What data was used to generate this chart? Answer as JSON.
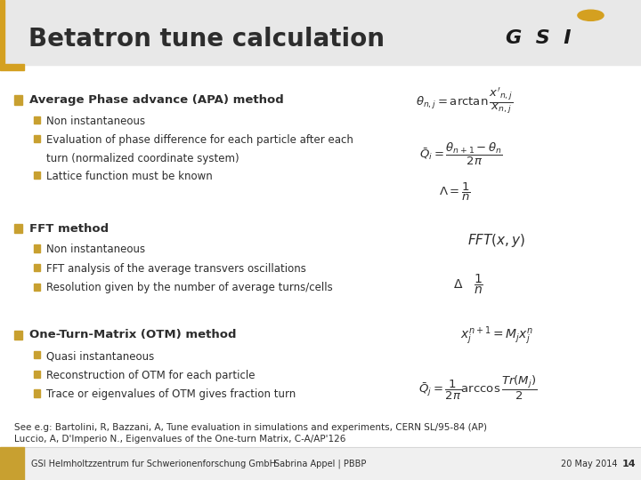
{
  "title": "Betatron tune calculation",
  "title_color": "#2d2d2d",
  "title_fontsize": 20,
  "bg_color": "#ffffff",
  "header_bar_color": "#e8e8e8",
  "left_accent_color": "#d4a020",
  "footer_bar_color": "#c8a030",
  "bullet_color": "#c8a030",
  "text_color": "#2d2d2d",
  "section1_main": "Average Phase advance (APA) method",
  "section1_sub": [
    "Non instantaneous",
    "Evaluation of phase difference for each particle after each\n    turn (normalized coordinate system)",
    "Lattice function must be known"
  ],
  "section2_main": "FFT method",
  "section2_sub": [
    "Non instantaneous",
    "FFT analysis of the average transvers oscillations",
    "Resolution given by the number of average turns/cells"
  ],
  "section3_main": "One-Turn-Matrix (OTM) method",
  "section3_sub": [
    "Quasi instantaneous",
    "Reconstruction of OTM for each particle",
    "Trace or eigenvalues of OTM gives fraction turn"
  ],
  "footer_left": "GSI Helmholtzzentrum fur Schwerionenforschung GmbH",
  "footer_center": "Sabrina Appel | PBBP",
  "footer_right": "20 May 2014",
  "footer_page": "14",
  "footer_color": "#2d2d2d",
  "footer_fontsize": 7,
  "ref_line1": "See e.g: Bartolini, R, Bazzani, A, Tune evaluation in simulations and experiments, CERN SL/95-84 (AP)",
  "ref_line2": "Luccio, A, D'Imperio N., Eigenvalues of the One-turn Matrix, C-A/AP'126",
  "ref_fontsize": 7.5
}
